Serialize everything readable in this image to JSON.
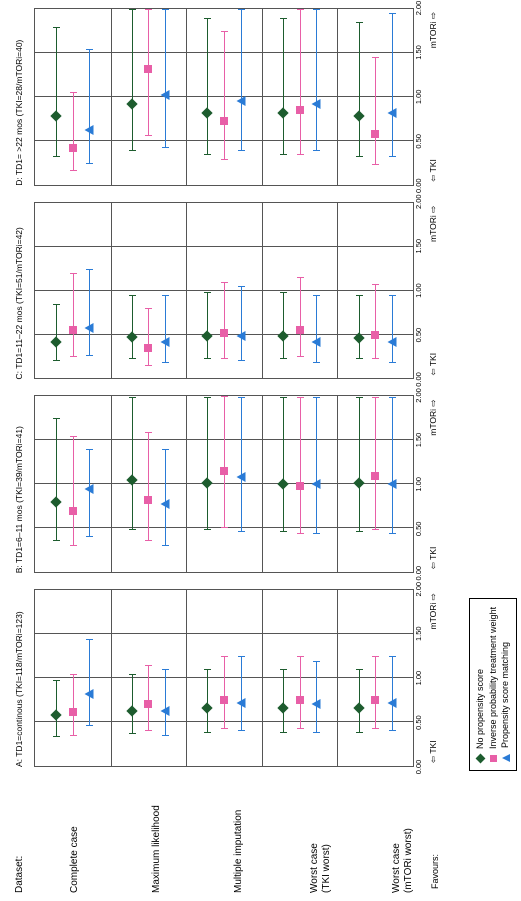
{
  "xmin": 0.0,
  "xmax": 2.0,
  "ticks": [
    0.0,
    0.5,
    1.0,
    1.5,
    2.0
  ],
  "tick_labels": [
    "0.00",
    "0.50",
    "1.00",
    "1.50",
    "2.00"
  ],
  "colors": {
    "nps": "#1d5c2e",
    "ipw": "#e85fa7",
    "psm": "#2a7bd6",
    "grid": "#555555",
    "bg": "#ffffff"
  },
  "datasets_label": "Dataset:",
  "datasets": [
    "Complete case",
    "Maximum likelihood",
    "Multiple imputation",
    "Worst case\n(TKI worst)",
    "Worst case\n(mTORi worst)"
  ],
  "favours_word": "Favours:",
  "favour_left": "⇦ TKI",
  "favour_right": "mTORi ⇨",
  "legend": {
    "nps": "No propensity score",
    "ipw": "Inverse probability treatment weight",
    "psm": "Propensity score matching"
  },
  "panels": [
    {
      "title": "A: TD1=continous (TKI=118/mTORi=123)",
      "rows": [
        {
          "nps": {
            "p": 0.58,
            "l": 0.33,
            "u": 0.98
          },
          "ipw": {
            "p": 0.62,
            "l": 0.34,
            "u": 1.05
          },
          "psm": {
            "p": 0.82,
            "l": 0.45,
            "u": 1.45
          }
        },
        {
          "nps": {
            "p": 0.63,
            "l": 0.36,
            "u": 1.05
          },
          "ipw": {
            "p": 0.7,
            "l": 0.4,
            "u": 1.15
          },
          "psm": {
            "p": 0.63,
            "l": 0.34,
            "u": 1.1
          }
        },
        {
          "nps": {
            "p": 0.66,
            "l": 0.38,
            "u": 1.1
          },
          "ipw": {
            "p": 0.75,
            "l": 0.42,
            "u": 1.25
          },
          "psm": {
            "p": 0.72,
            "l": 0.4,
            "u": 1.25
          }
        },
        {
          "nps": {
            "p": 0.66,
            "l": 0.38,
            "u": 1.1
          },
          "ipw": {
            "p": 0.75,
            "l": 0.42,
            "u": 1.25
          },
          "psm": {
            "p": 0.7,
            "l": 0.38,
            "u": 1.2
          }
        },
        {
          "nps": {
            "p": 0.66,
            "l": 0.38,
            "u": 1.1
          },
          "ipw": {
            "p": 0.75,
            "l": 0.42,
            "u": 1.25
          },
          "psm": {
            "p": 0.72,
            "l": 0.4,
            "u": 1.25
          }
        }
      ]
    },
    {
      "title": "B: TD1=6–11 mos (TKI=39/mTORi=41)",
      "rows": [
        {
          "nps": {
            "p": 0.8,
            "l": 0.35,
            "u": 1.75
          },
          "ipw": {
            "p": 0.7,
            "l": 0.3,
            "u": 1.55
          },
          "psm": {
            "p": 0.95,
            "l": 0.4,
            "u": 1.4
          }
        },
        {
          "nps": {
            "p": 1.05,
            "l": 0.48,
            "u": 2.0
          },
          "ipw": {
            "p": 0.82,
            "l": 0.35,
            "u": 1.6
          },
          "psm": {
            "p": 0.78,
            "l": 0.3,
            "u": 1.4
          }
        },
        {
          "nps": {
            "p": 1.02,
            "l": 0.48,
            "u": 2.0
          },
          "ipw": {
            "p": 1.15,
            "l": 0.5,
            "u": 2.0
          },
          "psm": {
            "p": 1.08,
            "l": 0.46,
            "u": 2.0
          }
        },
        {
          "nps": {
            "p": 1.0,
            "l": 0.46,
            "u": 2.0
          },
          "ipw": {
            "p": 0.98,
            "l": 0.44,
            "u": 2.0
          },
          "psm": {
            "p": 1.0,
            "l": 0.44,
            "u": 2.0
          }
        },
        {
          "nps": {
            "p": 1.02,
            "l": 0.46,
            "u": 2.0
          },
          "ipw": {
            "p": 1.1,
            "l": 0.48,
            "u": 2.0
          },
          "psm": {
            "p": 1.0,
            "l": 0.44,
            "u": 2.0
          }
        }
      ]
    },
    {
      "title": "C: TD1=11–22 mos (TKI=51/mTORi=42)",
      "rows": [
        {
          "nps": {
            "p": 0.42,
            "l": 0.2,
            "u": 0.85
          },
          "ipw": {
            "p": 0.55,
            "l": 0.24,
            "u": 1.2
          },
          "psm": {
            "p": 0.58,
            "l": 0.26,
            "u": 1.25
          }
        },
        {
          "nps": {
            "p": 0.47,
            "l": 0.22,
            "u": 0.95
          },
          "ipw": {
            "p": 0.35,
            "l": 0.14,
            "u": 0.8
          },
          "psm": {
            "p": 0.42,
            "l": 0.18,
            "u": 0.95
          }
        },
        {
          "nps": {
            "p": 0.48,
            "l": 0.22,
            "u": 0.98
          },
          "ipw": {
            "p": 0.52,
            "l": 0.22,
            "u": 1.1
          },
          "psm": {
            "p": 0.48,
            "l": 0.2,
            "u": 1.05
          }
        },
        {
          "nps": {
            "p": 0.48,
            "l": 0.22,
            "u": 0.98
          },
          "ipw": {
            "p": 0.55,
            "l": 0.24,
            "u": 1.15
          },
          "psm": {
            "p": 0.42,
            "l": 0.18,
            "u": 0.95
          }
        },
        {
          "nps": {
            "p": 0.46,
            "l": 0.22,
            "u": 0.95
          },
          "ipw": {
            "p": 0.5,
            "l": 0.22,
            "u": 1.08
          },
          "psm": {
            "p": 0.42,
            "l": 0.18,
            "u": 0.95
          }
        }
      ]
    },
    {
      "title": "D: TD1= >22 mos (TKI=28/mTORi=40)",
      "rows": [
        {
          "nps": {
            "p": 0.78,
            "l": 0.32,
            "u": 1.8
          },
          "ipw": {
            "p": 0.42,
            "l": 0.16,
            "u": 1.05
          },
          "psm": {
            "p": 0.62,
            "l": 0.24,
            "u": 1.55
          }
        },
        {
          "nps": {
            "p": 0.92,
            "l": 0.38,
            "u": 2.0
          },
          "ipw": {
            "p": 1.32,
            "l": 0.55,
            "u": 2.0
          },
          "psm": {
            "p": 1.02,
            "l": 0.42,
            "u": 2.0
          }
        },
        {
          "nps": {
            "p": 0.82,
            "l": 0.34,
            "u": 1.9
          },
          "ipw": {
            "p": 0.72,
            "l": 0.28,
            "u": 1.75
          },
          "psm": {
            "p": 0.95,
            "l": 0.38,
            "u": 2.0
          }
        },
        {
          "nps": {
            "p": 0.82,
            "l": 0.34,
            "u": 1.9
          },
          "ipw": {
            "p": 0.85,
            "l": 0.34,
            "u": 2.0
          },
          "psm": {
            "p": 0.92,
            "l": 0.38,
            "u": 2.0
          }
        },
        {
          "nps": {
            "p": 0.78,
            "l": 0.32,
            "u": 1.85
          },
          "ipw": {
            "p": 0.58,
            "l": 0.22,
            "u": 1.45
          },
          "psm": {
            "p": 0.82,
            "l": 0.32,
            "u": 1.95
          }
        }
      ]
    }
  ]
}
